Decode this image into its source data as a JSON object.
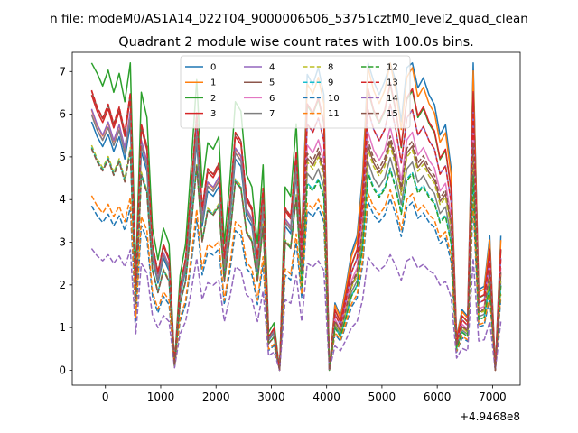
{
  "figure": {
    "suptitle": "n file: modeM0/AS1A14_022T04_9000006506_53751cztM0_level2_quad_clean",
    "title": "Quadrant 2 module wise count rates with 100.0s bins.",
    "x_offset_label": "+4.9468e8"
  },
  "chart_data": {
    "type": "line",
    "title": "Quadrant 2 module wise count rates with 100.0s bins.",
    "xlabel": "",
    "ylabel": "",
    "x_offset": "+4.9468e8",
    "xlim": [
      -600,
      7500
    ],
    "ylim": [
      -0.35,
      7.45
    ],
    "xticks": [
      0,
      1000,
      2000,
      3000,
      4000,
      5000,
      6000,
      7000
    ],
    "yticks": [
      0,
      1,
      2,
      3,
      4,
      5,
      6,
      7
    ],
    "grid": false,
    "legend": {
      "placement": "upper-center",
      "ncol": 4
    },
    "x": [
      -250,
      -150,
      -50,
      50,
      150,
      250,
      350,
      450,
      550,
      650,
      750,
      850,
      950,
      1050,
      1150,
      1250,
      1350,
      1450,
      1550,
      1650,
      1750,
      1850,
      1950,
      2050,
      2150,
      2250,
      2350,
      2450,
      2550,
      2650,
      2750,
      2850,
      2950,
      3050,
      3150,
      3250,
      3350,
      3450,
      3550,
      3650,
      3750,
      3850,
      3950,
      4050,
      4150,
      4250,
      4350,
      4450,
      4550,
      4650,
      4750,
      4850,
      4950,
      5050,
      5150,
      5250,
      5350,
      5450,
      5550,
      5650,
      5750,
      5850,
      5950,
      6050,
      6150,
      6250,
      6350,
      6450,
      6550,
      6650,
      6750,
      6850,
      6950,
      7050,
      7150
    ],
    "reference_profile": [
      1.0,
      0.94,
      0.9,
      0.95,
      0.88,
      0.94,
      0.85,
      0.99,
      0.3,
      0.88,
      0.8,
      0.45,
      0.35,
      0.45,
      0.4,
      0.02,
      0.3,
      0.4,
      0.65,
      0.92,
      0.58,
      0.72,
      0.7,
      0.74,
      0.4,
      0.6,
      0.85,
      0.82,
      0.62,
      0.58,
      0.4,
      0.65,
      0.12,
      0.15,
      0.0,
      0.58,
      0.55,
      0.78,
      0.4,
      0.88,
      0.85,
      0.9,
      0.82,
      0.0,
      0.2,
      0.16,
      0.25,
      0.35,
      0.4,
      0.58,
      0.93,
      0.86,
      0.82,
      0.86,
      0.95,
      0.86,
      0.74,
      0.9,
      0.93,
      0.84,
      0.87,
      0.82,
      0.79,
      0.7,
      0.73,
      0.6,
      0.1,
      0.18,
      0.16,
      0.92,
      0.24,
      0.25,
      0.4,
      0.0,
      0.4
    ],
    "series": [
      {
        "name": "0",
        "color": "#1f77b4",
        "style": "solid",
        "level": 6.85,
        "bias": 0.0,
        "mask": [
          0.85,
          1.15
        ]
      },
      {
        "name": "1",
        "color": "#ff7f0e",
        "style": "solid",
        "level": 6.1,
        "bias": 0.0,
        "mask": [
          1.0,
          1.25
        ]
      },
      {
        "name": "2",
        "color": "#2ca02c",
        "style": "solid",
        "level": 7.05,
        "bias": 0.0,
        "mask": [
          1.05,
          1.0
        ]
      },
      {
        "name": "3",
        "color": "#d62728",
        "style": "solid",
        "level": 6.45,
        "bias": 0.0,
        "mask": [
          1.0,
          1.1
        ]
      },
      {
        "name": "4",
        "color": "#9467bd",
        "style": "solid",
        "level": 6.25,
        "bias": 0.0,
        "mask": [
          0.98,
          1.05
        ]
      },
      {
        "name": "5",
        "color": "#8c564b",
        "style": "solid",
        "level": 5.95,
        "bias": 0.0,
        "mask": [
          1.1,
          0.95
        ]
      },
      {
        "name": "6",
        "color": "#e377c2",
        "style": "solid",
        "level": 6.0,
        "bias": 0.0,
        "mask": [
          1.0,
          1.0
        ]
      },
      {
        "name": "7",
        "color": "#7f7f7f",
        "style": "solid",
        "level": 5.7,
        "bias": 0.0,
        "mask": [
          1.05,
          0.92
        ]
      },
      {
        "name": "8",
        "color": "#bcbd22",
        "style": "dashed",
        "level": 5.55,
        "bias": 0.0,
        "mask": [
          0.95,
          1.0
        ]
      },
      {
        "name": "9",
        "color": "#17becf",
        "style": "dashed",
        "level": 4.75,
        "bias": 0.0,
        "mask": [
          1.1,
          1.05
        ]
      },
      {
        "name": "10",
        "color": "#1f77b4",
        "style": "dashed",
        "level": 3.85,
        "bias": 0.0,
        "mask": [
          1.0,
          1.1
        ]
      },
      {
        "name": "11",
        "color": "#ff7f0e",
        "style": "dashed",
        "level": 4.45,
        "bias": 0.0,
        "mask": [
          0.92,
          1.0
        ]
      },
      {
        "name": "12",
        "color": "#2ca02c",
        "style": "dashed",
        "level": 5.2,
        "bias": 0.0,
        "mask": [
          1.0,
          0.95
        ]
      },
      {
        "name": "13",
        "color": "#d62728",
        "style": "dashed",
        "level": 6.25,
        "bias": 0.0,
        "mask": [
          1.05,
          1.05
        ]
      },
      {
        "name": "14",
        "color": "#9467bd",
        "style": "dashed",
        "level": 2.85,
        "bias": 0.0,
        "mask": [
          1.0,
          1.0
        ]
      },
      {
        "name": "15",
        "color": "#8c564b",
        "style": "dashed",
        "level": 5.35,
        "bias": 0.0,
        "mask": [
          0.97,
          1.08
        ]
      }
    ]
  }
}
